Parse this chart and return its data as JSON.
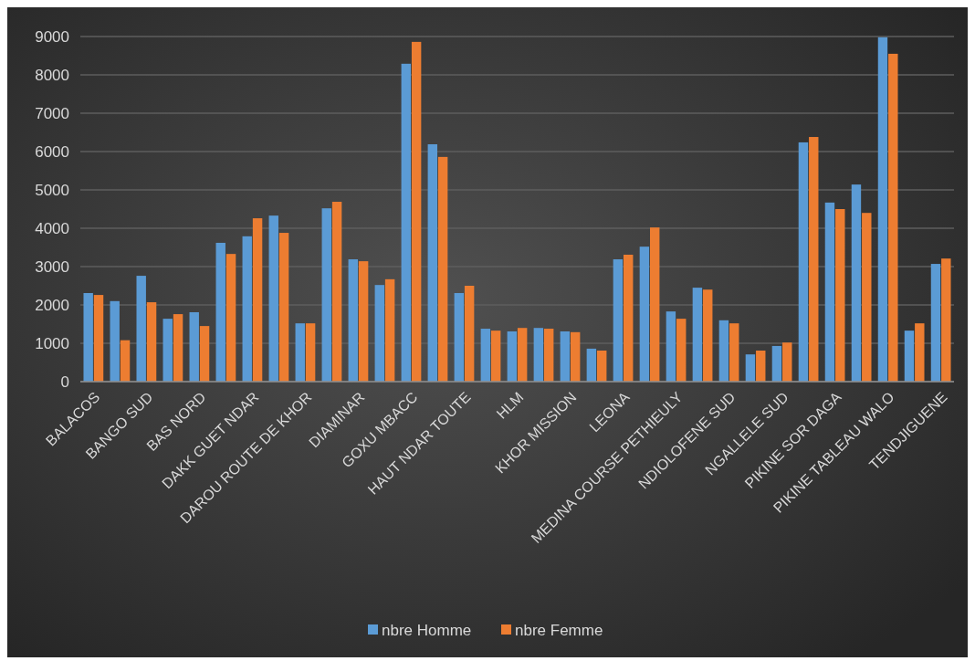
{
  "chart_data": {
    "type": "bar",
    "categories": [
      "BALACOS",
      null,
      "BANGO SUD",
      null,
      "BAS NORD",
      null,
      "DAKK GUET NDAR",
      null,
      "DAROU ROUTE DE KHOR",
      null,
      "DIAMINAR",
      null,
      "GOXU MBACC",
      null,
      "HAUT NDAR TOUTE",
      null,
      "HLM",
      null,
      "KHOR MISSION",
      null,
      "LEONA",
      null,
      "MEDINA COURSE PETHIEULY",
      null,
      "NDIOLOFENE SUD",
      null,
      "NGALLELE SUD",
      null,
      "PIKINE SOR DAGA",
      null,
      "PIKINE TABLEAU WALO",
      null,
      "TENDJIGUENE"
    ],
    "series": [
      {
        "name": "nbre Homme",
        "color": "#5b9bd5",
        "values": [
          2310,
          2100,
          2760,
          1640,
          1810,
          3620,
          3790,
          4330,
          1520,
          4520,
          3190,
          2520,
          8290,
          6190,
          2310,
          1380,
          1310,
          1400,
          1310,
          860,
          3190,
          3520,
          1830,
          2450,
          1600,
          710,
          930,
          6240,
          4670,
          5140,
          8980,
          1330,
          3070
        ]
      },
      {
        "name": "nbre Femme",
        "color": "#ed7d31",
        "values": [
          2260,
          1080,
          2070,
          1760,
          1450,
          3330,
          4260,
          3880,
          1520,
          4690,
          3140,
          2670,
          8860,
          5860,
          2500,
          1330,
          1400,
          1380,
          1290,
          810,
          3310,
          4020,
          1640,
          2400,
          1520,
          810,
          1020,
          6380,
          4500,
          4400,
          8550,
          1520,
          3210
        ]
      }
    ],
    "ylim": [
      0,
      9000
    ],
    "yticks": [
      0,
      1000,
      2000,
      3000,
      4000,
      5000,
      6000,
      7000,
      8000,
      9000
    ],
    "grid": "y",
    "legend": "bottom"
  }
}
